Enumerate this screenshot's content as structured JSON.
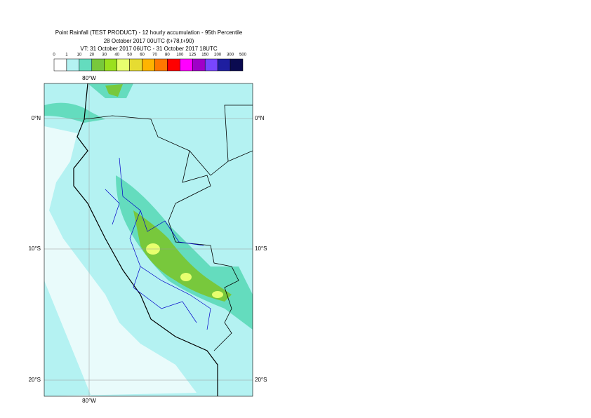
{
  "header": {
    "title": "Point Rainfall (TEST PRODUCT) - 12 hourly accumulation - 95th Percentile",
    "base_time": "28 October 2017 00UTC (t+78,t+90)",
    "valid_time": "VT: 31 October 2017 06UTC - 31 October 2017 18UTC"
  },
  "legend": {
    "thresholds": [
      0,
      1,
      10,
      20,
      30,
      40,
      50,
      60,
      70,
      80,
      100,
      125,
      150,
      200,
      300,
      500
    ],
    "colors": [
      "#ffffff",
      "#b4f2f2",
      "#64dcbe",
      "#78c83c",
      "#9ae01e",
      "#e8ff6e",
      "#e6dc32",
      "#ffb400",
      "#ff7800",
      "#ff0000",
      "#ff00ff",
      "#a000c8",
      "#7846ff",
      "#1e1ea0",
      "#0a0a50"
    ]
  },
  "grid": {
    "lon_labels": [
      "80°W"
    ],
    "lat_labels": [
      "0°N",
      "10°S",
      "20°S"
    ]
  }
}
